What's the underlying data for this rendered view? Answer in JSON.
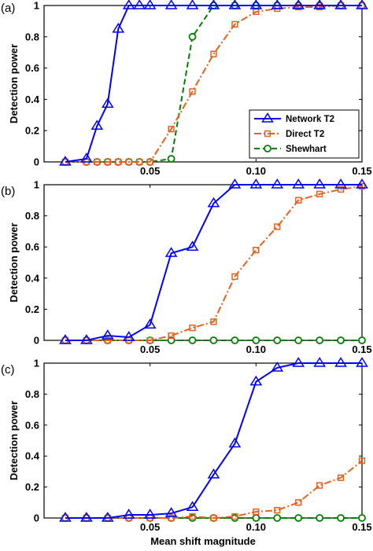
{
  "chart_data": [
    {
      "panel_label": "(a)",
      "type": "line",
      "xlabel": "",
      "ylabel": "Detection power",
      "xlim": [
        0,
        0.15
      ],
      "ylim": [
        0,
        1
      ],
      "xticks": [
        {
          "v": 0.05,
          "label": "0.05"
        },
        {
          "v": 0.1,
          "label": "0.10"
        },
        {
          "v": 0.15,
          "label": "0.15"
        }
      ],
      "yticks": [
        {
          "v": 0,
          "label": "0"
        },
        {
          "v": 0.2,
          "label": "0.2"
        },
        {
          "v": 0.4,
          "label": "0.4"
        },
        {
          "v": 0.6,
          "label": "0.6"
        },
        {
          "v": 0.8,
          "label": "0.8"
        },
        {
          "v": 1,
          "label": "1"
        }
      ],
      "legend": {
        "show": true,
        "position": "lower-right"
      },
      "series": [
        {
          "name": "Network T2",
          "color": "#0000ff",
          "dash": "solid",
          "marker": "triangle",
          "x": [
            0.01,
            0.02,
            0.025,
            0.03,
            0.035,
            0.04,
            0.045,
            0.05,
            0.06,
            0.07,
            0.08,
            0.09,
            0.1,
            0.11,
            0.12,
            0.13,
            0.14,
            0.15
          ],
          "y": [
            0,
            0.02,
            0.23,
            0.37,
            0.85,
            1,
            1,
            1,
            1,
            1,
            1,
            1,
            1,
            1,
            1,
            1,
            1,
            1
          ]
        },
        {
          "name": "Direct T2",
          "color": "#e8601c",
          "dash": "dashdot",
          "marker": "square",
          "x": [
            0.01,
            0.02,
            0.025,
            0.03,
            0.035,
            0.04,
            0.045,
            0.05,
            0.06,
            0.07,
            0.08,
            0.09,
            0.1,
            0.11,
            0.12,
            0.13,
            0.14,
            0.15
          ],
          "y": [
            0,
            0,
            0,
            0,
            0,
            0,
            0,
            0,
            0.21,
            0.45,
            0.69,
            0.88,
            0.96,
            0.98,
            0.99,
            0.99,
            1,
            1
          ]
        },
        {
          "name": "Shewhart",
          "color": "#008000",
          "dash": "dashed",
          "marker": "circle",
          "x": [
            0.01,
            0.02,
            0.025,
            0.03,
            0.035,
            0.04,
            0.045,
            0.05,
            0.06,
            0.07,
            0.08,
            0.09,
            0.1,
            0.11,
            0.12,
            0.13,
            0.14,
            0.15
          ],
          "y": [
            0,
            0,
            0,
            0,
            0,
            0,
            0,
            0,
            0.02,
            0.8,
            1,
            1,
            1,
            1,
            1,
            1,
            1,
            1
          ]
        }
      ]
    },
    {
      "panel_label": "(b)",
      "type": "line",
      "xlabel": "",
      "ylabel": "Detection power",
      "xlim": [
        0,
        0.15
      ],
      "ylim": [
        0,
        1
      ],
      "xticks": [
        {
          "v": 0.05,
          "label": "0.05"
        },
        {
          "v": 0.1,
          "label": "0.10"
        },
        {
          "v": 0.15,
          "label": "0.15"
        }
      ],
      "yticks": [
        {
          "v": 0,
          "label": "0"
        },
        {
          "v": 0.2,
          "label": "0.2"
        },
        {
          "v": 0.4,
          "label": "0.4"
        },
        {
          "v": 0.6,
          "label": "0.6"
        },
        {
          "v": 0.8,
          "label": "0.8"
        },
        {
          "v": 1,
          "label": "1"
        }
      ],
      "legend": {
        "show": false
      },
      "series": [
        {
          "name": "Network T2",
          "color": "#0000ff",
          "dash": "solid",
          "marker": "triangle",
          "x": [
            0.01,
            0.02,
            0.03,
            0.04,
            0.05,
            0.06,
            0.07,
            0.08,
            0.09,
            0.1,
            0.11,
            0.12,
            0.13,
            0.14,
            0.15
          ],
          "y": [
            0,
            0,
            0.03,
            0.02,
            0.1,
            0.56,
            0.6,
            0.88,
            1,
            1,
            1,
            1,
            1,
            1,
            1
          ]
        },
        {
          "name": "Direct T2",
          "color": "#e8601c",
          "dash": "dashdot",
          "marker": "square",
          "x": [
            0.01,
            0.02,
            0.03,
            0.04,
            0.05,
            0.06,
            0.07,
            0.08,
            0.09,
            0.1,
            0.11,
            0.12,
            0.13,
            0.14,
            0.15
          ],
          "y": [
            0,
            0,
            0,
            0,
            0,
            0.03,
            0.08,
            0.12,
            0.41,
            0.58,
            0.73,
            0.9,
            0.94,
            0.97,
            0.99
          ]
        },
        {
          "name": "Shewhart",
          "color": "#008000",
          "dash": "dashed",
          "marker": "circle",
          "x": [
            0.01,
            0.02,
            0.03,
            0.04,
            0.05,
            0.06,
            0.07,
            0.08,
            0.09,
            0.1,
            0.11,
            0.12,
            0.13,
            0.14,
            0.15
          ],
          "y": [
            0,
            0,
            0,
            0,
            0,
            0,
            0,
            0,
            0,
            0,
            0,
            0,
            0,
            0,
            0
          ]
        }
      ]
    },
    {
      "panel_label": "(c)",
      "type": "line",
      "xlabel": "Mean shift magnitude",
      "ylabel": "Detection power",
      "xlim": [
        0,
        0.15
      ],
      "ylim": [
        0,
        1
      ],
      "xticks": [
        {
          "v": 0.05,
          "label": "0.05"
        },
        {
          "v": 0.1,
          "label": "0.10"
        },
        {
          "v": 0.15,
          "label": "0.15"
        }
      ],
      "yticks": [
        {
          "v": 0,
          "label": "0"
        },
        {
          "v": 0.2,
          "label": "0.2"
        },
        {
          "v": 0.4,
          "label": "0.4"
        },
        {
          "v": 0.6,
          "label": "0.6"
        },
        {
          "v": 0.8,
          "label": "0.8"
        },
        {
          "v": 1,
          "label": "1"
        }
      ],
      "legend": {
        "show": false
      },
      "series": [
        {
          "name": "Network T2",
          "color": "#0000ff",
          "dash": "solid",
          "marker": "triangle",
          "x": [
            0.01,
            0.02,
            0.03,
            0.04,
            0.05,
            0.06,
            0.07,
            0.08,
            0.09,
            0.1,
            0.11,
            0.12,
            0.13,
            0.14,
            0.15
          ],
          "y": [
            0,
            0,
            0,
            0.02,
            0.02,
            0.03,
            0.07,
            0.28,
            0.48,
            0.88,
            0.97,
            1,
            1,
            1,
            1
          ]
        },
        {
          "name": "Direct T2",
          "color": "#e8601c",
          "dash": "dashdot",
          "marker": "square",
          "x": [
            0.01,
            0.02,
            0.03,
            0.04,
            0.05,
            0.06,
            0.07,
            0.08,
            0.09,
            0.1,
            0.11,
            0.12,
            0.13,
            0.14,
            0.15
          ],
          "y": [
            0,
            0,
            0,
            0,
            0,
            0,
            0.01,
            0,
            0.01,
            0.04,
            0.05,
            0.1,
            0.21,
            0.26,
            0.37
          ]
        },
        {
          "name": "Shewhart",
          "color": "#008000",
          "dash": "dashed",
          "marker": "circle",
          "x": [
            0.01,
            0.02,
            0.03,
            0.04,
            0.05,
            0.06,
            0.07,
            0.08,
            0.09,
            0.1,
            0.11,
            0.12,
            0.13,
            0.14,
            0.15
          ],
          "y": [
            0,
            0,
            0,
            0,
            0,
            0,
            0,
            0,
            0,
            0,
            0,
            0,
            0,
            0,
            0
          ]
        }
      ]
    }
  ]
}
